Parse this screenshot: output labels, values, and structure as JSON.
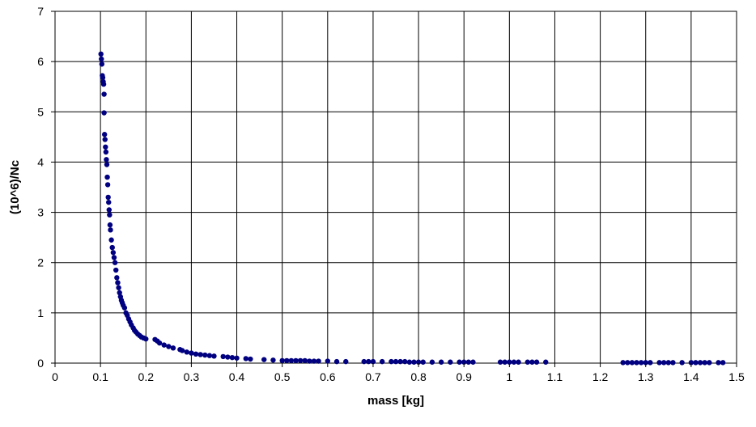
{
  "chart_data": {
    "type": "scatter",
    "title": "",
    "xlabel": "mass [kg]",
    "ylabel": "(10^6)/Nc",
    "xlim": [
      0,
      1.5
    ],
    "ylim": [
      0,
      7
    ],
    "x_ticks": [
      "0",
      "0.1",
      "0.2",
      "0.3",
      "0.4",
      "0.5",
      "0.6",
      "0.7",
      "0.8",
      "0.9",
      "1",
      "1.1",
      "1.2",
      "1.3",
      "1.4",
      "1.5"
    ],
    "y_ticks": [
      "0",
      "1",
      "2",
      "3",
      "4",
      "5",
      "6",
      "7"
    ],
    "grid": true,
    "legend": "none",
    "marker_color": "#000080",
    "series": [
      {
        "x": [
          0.101,
          0.102,
          0.103,
          0.104,
          0.105,
          0.106,
          0.107,
          0.108,
          0.108,
          0.109,
          0.11,
          0.111,
          0.112,
          0.113,
          0.114,
          0.115,
          0.116,
          0.117,
          0.118,
          0.119,
          0.12,
          0.121,
          0.122,
          0.124,
          0.126,
          0.128,
          0.13,
          0.132,
          0.134,
          0.136,
          0.138,
          0.14,
          0.142,
          0.144,
          0.146,
          0.148,
          0.15,
          0.153,
          0.156,
          0.159,
          0.162,
          0.165,
          0.168,
          0.172,
          0.175,
          0.178,
          0.182,
          0.186,
          0.19,
          0.195,
          0.2,
          0.22,
          0.225,
          0.23,
          0.24,
          0.25,
          0.26,
          0.275,
          0.28,
          0.29,
          0.3,
          0.31,
          0.32,
          0.33,
          0.34,
          0.35,
          0.37,
          0.38,
          0.39,
          0.4,
          0.42,
          0.43,
          0.46,
          0.48,
          0.5,
          0.51,
          0.52,
          0.53,
          0.54,
          0.55,
          0.56,
          0.57,
          0.58,
          0.6,
          0.62,
          0.64,
          0.68,
          0.69,
          0.7,
          0.72,
          0.74,
          0.75,
          0.76,
          0.77,
          0.78,
          0.79,
          0.8,
          0.81,
          0.83,
          0.85,
          0.87,
          0.89,
          0.9,
          0.91,
          0.92,
          0.98,
          0.99,
          1.0,
          1.01,
          1.02,
          1.04,
          1.05,
          1.06,
          1.08,
          1.25,
          1.26,
          1.27,
          1.28,
          1.29,
          1.3,
          1.31,
          1.33,
          1.34,
          1.35,
          1.36,
          1.38,
          1.4,
          1.41,
          1.42,
          1.43,
          1.44,
          1.46,
          1.47
        ],
        "y": [
          6.15,
          6.05,
          5.95,
          5.72,
          5.68,
          5.6,
          5.55,
          5.35,
          4.98,
          4.55,
          4.45,
          4.3,
          4.2,
          4.05,
          3.95,
          3.7,
          3.55,
          3.3,
          3.2,
          3.05,
          2.95,
          2.75,
          2.65,
          2.45,
          2.3,
          2.2,
          2.1,
          2.0,
          1.85,
          1.7,
          1.6,
          1.5,
          1.4,
          1.32,
          1.25,
          1.2,
          1.15,
          1.1,
          1.0,
          0.95,
          0.88,
          0.82,
          0.76,
          0.7,
          0.65,
          0.62,
          0.58,
          0.55,
          0.52,
          0.5,
          0.48,
          0.47,
          0.44,
          0.4,
          0.36,
          0.33,
          0.3,
          0.27,
          0.25,
          0.22,
          0.2,
          0.18,
          0.17,
          0.16,
          0.15,
          0.14,
          0.13,
          0.12,
          0.11,
          0.1,
          0.09,
          0.08,
          0.07,
          0.06,
          0.05,
          0.05,
          0.05,
          0.05,
          0.05,
          0.05,
          0.04,
          0.04,
          0.04,
          0.04,
          0.03,
          0.03,
          0.03,
          0.03,
          0.03,
          0.03,
          0.03,
          0.03,
          0.03,
          0.03,
          0.02,
          0.02,
          0.02,
          0.02,
          0.02,
          0.02,
          0.02,
          0.02,
          0.02,
          0.02,
          0.02,
          0.02,
          0.02,
          0.02,
          0.02,
          0.02,
          0.02,
          0.02,
          0.02,
          0.02,
          0.01,
          0.01,
          0.01,
          0.01,
          0.01,
          0.01,
          0.01,
          0.01,
          0.01,
          0.01,
          0.01,
          0.01,
          0.01,
          0.01,
          0.01,
          0.01,
          0.01,
          0.01,
          0.01
        ]
      }
    ]
  }
}
